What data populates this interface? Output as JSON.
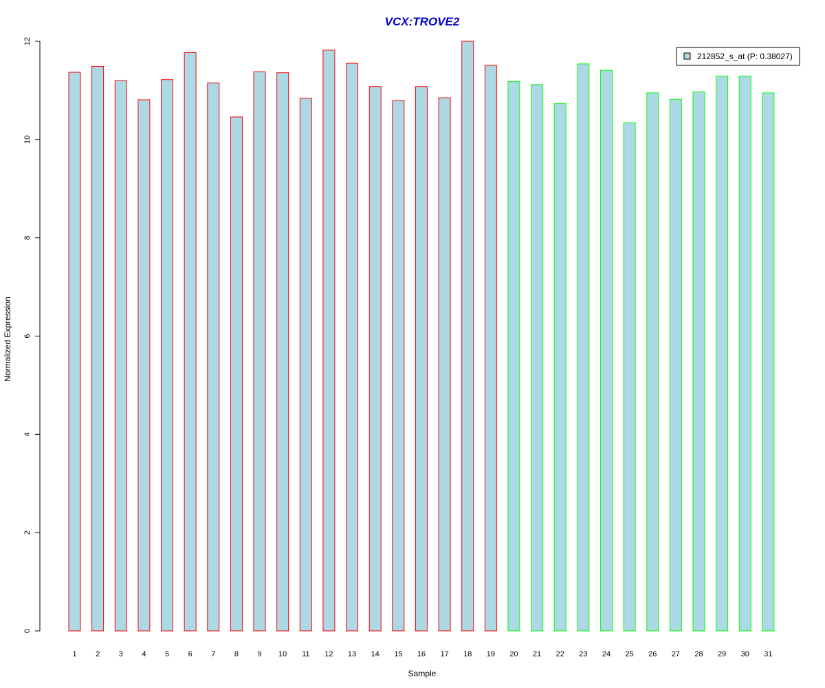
{
  "chart_data": {
    "type": "bar",
    "title": "VCX:TROVE2",
    "xlabel": "Sample",
    "ylabel": "Normalized Expression",
    "ylim": [
      0,
      12
    ],
    "yticks": [
      0,
      2,
      4,
      6,
      8,
      10,
      12
    ],
    "categories": [
      "1",
      "2",
      "3",
      "4",
      "5",
      "6",
      "7",
      "8",
      "9",
      "10",
      "11",
      "12",
      "13",
      "14",
      "15",
      "16",
      "17",
      "18",
      "19",
      "20",
      "21",
      "22",
      "23",
      "24",
      "25",
      "26",
      "27",
      "28",
      "29",
      "30",
      "31"
    ],
    "series": [
      {
        "name": "212852_s_at (P: 0.38027)",
        "fill": "#ADD8E6",
        "values": [
          11.37,
          11.49,
          11.2,
          10.81,
          11.22,
          11.77,
          11.15,
          10.46,
          11.38,
          11.36,
          10.84,
          11.82,
          11.55,
          11.08,
          10.79,
          11.08,
          10.85,
          12.0,
          11.51,
          11.18,
          11.12,
          10.73,
          11.54,
          11.41,
          10.34,
          10.95,
          10.82,
          10.97,
          11.29,
          11.29,
          10.95
        ]
      }
    ],
    "border_colors": [
      "#FF0000",
      "#FF0000",
      "#FF0000",
      "#FF0000",
      "#FF0000",
      "#FF0000",
      "#FF0000",
      "#FF0000",
      "#FF0000",
      "#FF0000",
      "#FF0000",
      "#FF0000",
      "#FF0000",
      "#FF0000",
      "#FF0000",
      "#FF0000",
      "#FF0000",
      "#FF0000",
      "#FF0000",
      "#00FF00",
      "#00FF00",
      "#00FF00",
      "#00FF00",
      "#00FF00",
      "#00FF00",
      "#00FF00",
      "#00FF00",
      "#00FF00",
      "#00FF00",
      "#00FF00",
      "#00FF00"
    ],
    "legend": {
      "position": "top-right",
      "label": "212852_s_at (P: 0.38027)",
      "fill": "#ADD8E6"
    },
    "grid": false
  }
}
